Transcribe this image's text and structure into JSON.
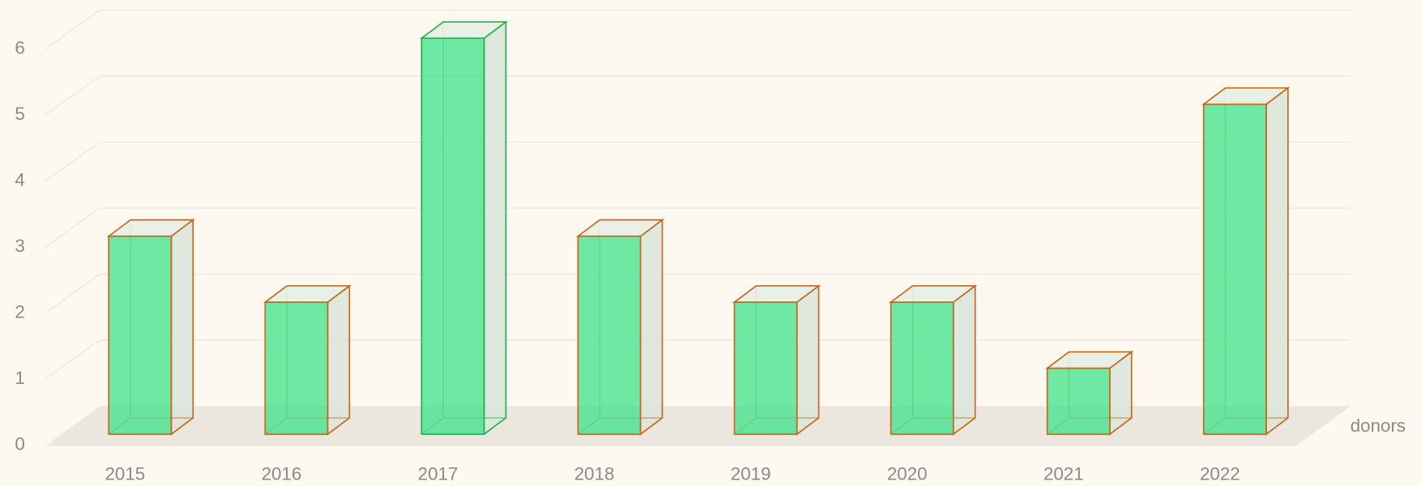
{
  "chart_data": {
    "type": "bar",
    "categories": [
      "2015",
      "2016",
      "2017",
      "2018",
      "2019",
      "2020",
      "2021",
      "2022"
    ],
    "values": [
      3,
      2,
      6,
      3,
      2,
      2,
      1,
      5
    ],
    "color": "#3de28a",
    "edge_colors": [
      "#c8661a",
      "#c8661a",
      "#22b14c",
      "#c8661a",
      "#c8661a",
      "#c8661a",
      "#c8661a",
      "#c8661a"
    ],
    "z_label": "donors",
    "ylim": [
      0,
      6
    ],
    "yticks": [
      0,
      1,
      2,
      3,
      4,
      5,
      6
    ],
    "grid": true
  }
}
